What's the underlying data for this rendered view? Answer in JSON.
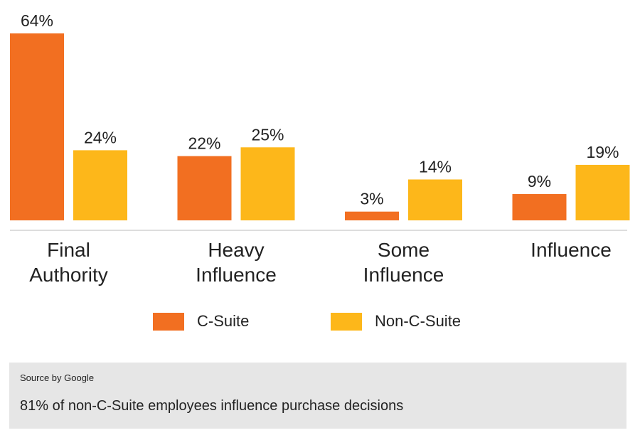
{
  "chart_data": {
    "type": "bar",
    "categories": [
      "Final Authority",
      "Heavy Influence",
      "Some Influence",
      "Influence"
    ],
    "series": [
      {
        "name": "C-Suite",
        "color": "#f26f21",
        "values": [
          64,
          22,
          3,
          9
        ],
        "value_labels": [
          "64%",
          "22%",
          "3%",
          "9%"
        ]
      },
      {
        "name": "Non-C-Suite",
        "color": "#fdb71a",
        "values": [
          24,
          25,
          14,
          19
        ],
        "value_labels": [
          "24%",
          "25%",
          "14%",
          "19%"
        ]
      }
    ],
    "source": "Source by Google",
    "caption": "81% of non-C-Suite employees influence purchase decisions"
  }
}
